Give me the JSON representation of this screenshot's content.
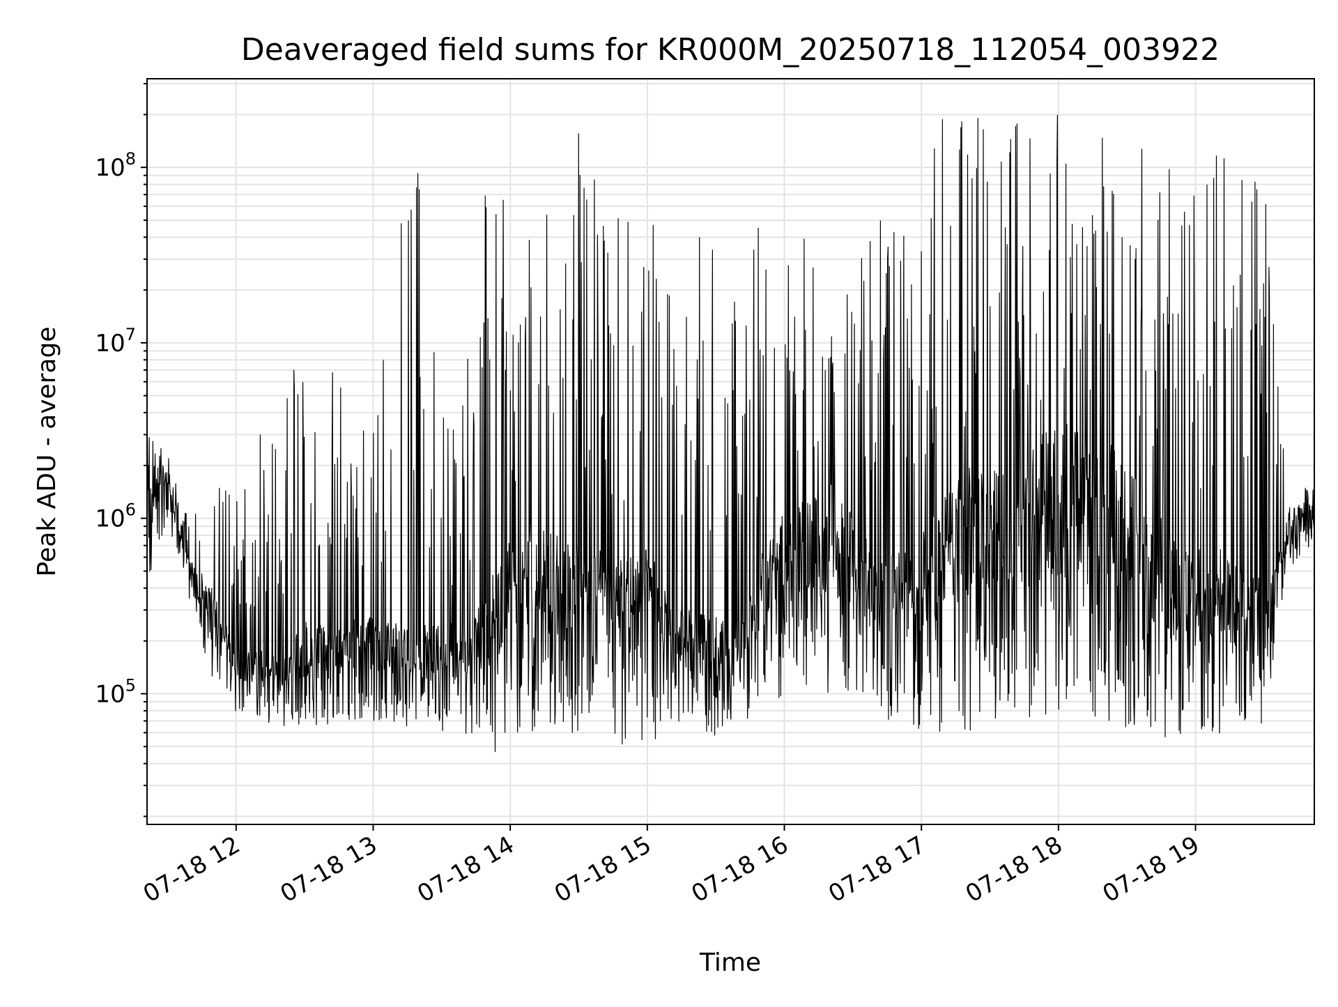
{
  "chart_data": {
    "type": "line",
    "title": "Deaveraged field sums for KR000M_20250718_112054_003922",
    "xlabel": "Time",
    "ylabel": "Peak ADU - average",
    "x_type": "datetime",
    "xlim": [
      "2025-07-18T11:21",
      "2025-07-18T19:52"
    ],
    "ylim": [
      18000,
      320000000
    ],
    "y_scale": "log",
    "grid": true,
    "x_ticks": [
      {
        "value": "2025-07-18T12:00",
        "label": "07-18 12"
      },
      {
        "value": "2025-07-18T13:00",
        "label": "07-18 13"
      },
      {
        "value": "2025-07-18T14:00",
        "label": "07-18 14"
      },
      {
        "value": "2025-07-18T15:00",
        "label": "07-18 15"
      },
      {
        "value": "2025-07-18T16:00",
        "label": "07-18 16"
      },
      {
        "value": "2025-07-18T17:00",
        "label": "07-18 17"
      },
      {
        "value": "2025-07-18T18:00",
        "label": "07-18 18"
      },
      {
        "value": "2025-07-18T19:00",
        "label": "07-18 19"
      }
    ],
    "y_ticks": [
      {
        "value": 100000,
        "base": "10",
        "exp": "5"
      },
      {
        "value": 1000000,
        "base": "10",
        "exp": "6"
      },
      {
        "value": 10000000,
        "base": "10",
        "exp": "7"
      },
      {
        "value": 100000000,
        "base": "10",
        "exp": "8"
      }
    ],
    "series": [
      {
        "color": "#000000",
        "envelope": {
          "x": [
            "11:21",
            "11:30",
            "11:40",
            "11:50",
            "12:00",
            "12:10",
            "12:20",
            "12:30",
            "12:40",
            "12:50",
            "13:00",
            "13:10",
            "13:20",
            "13:30",
            "13:40",
            "13:48",
            "13:55",
            "14:00",
            "14:10",
            "14:20",
            "14:30",
            "14:40",
            "14:50",
            "15:00",
            "15:10",
            "15:20",
            "15:30",
            "15:40",
            "15:50",
            "16:00",
            "16:10",
            "16:20",
            "16:30",
            "16:40",
            "16:50",
            "17:00",
            "17:10",
            "17:20",
            "17:30",
            "17:40",
            "17:50",
            "18:00",
            "18:10",
            "18:20",
            "18:30",
            "18:40",
            "18:50",
            "19:00",
            "19:10",
            "19:20",
            "19:30",
            "19:40",
            "19:52"
          ],
          "low": [
            400000,
            1000000,
            300000,
            120000,
            75000,
            70000,
            65000,
            60000,
            65000,
            70000,
            70000,
            65000,
            60000,
            60000,
            58000,
            50000,
            40000,
            60000,
            60000,
            55000,
            60000,
            55000,
            50000,
            50000,
            65000,
            60000,
            55000,
            60000,
            70000,
            100000,
            110000,
            90000,
            90000,
            90000,
            55000,
            55000,
            60000,
            55000,
            65000,
            75000,
            65000,
            70000,
            65000,
            55000,
            65000,
            60000,
            55000,
            50000,
            50000,
            55000,
            60000,
            500000,
            700000
          ],
          "mid": [
            1400000,
            1600000,
            500000,
            300000,
            150000,
            140000,
            130000,
            180000,
            170000,
            200000,
            190000,
            180000,
            170000,
            175000,
            180000,
            220000,
            300000,
            400000,
            500000,
            400000,
            380000,
            350000,
            300000,
            380000,
            220000,
            200000,
            180000,
            200000,
            400000,
            600000,
            700000,
            650000,
            600000,
            350000,
            350000,
            400000,
            650000,
            800000,
            900000,
            1000000,
            1100000,
            1300000,
            1200000,
            1100000,
            800000,
            600000,
            400000,
            350000,
            350000,
            300000,
            280000,
            700000,
            1400000
          ],
          "high": [
            3000000,
            2500000,
            900000,
            2000000,
            1500000,
            3000000,
            4000000,
            14000000,
            8000000,
            5000000,
            4000000,
            60000000,
            100000000,
            4000000,
            6000000,
            120000000,
            100000000,
            60000000,
            90000000,
            120000000,
            160000000,
            70000000,
            50000000,
            60000000,
            40000000,
            120000000,
            40000000,
            20000000,
            60000000,
            40000000,
            45000000,
            20000000,
            25000000,
            50000000,
            70000000,
            100000000,
            200000000,
            210000000,
            200000000,
            200000000,
            200000000,
            210000000,
            210000000,
            180000000,
            160000000,
            130000000,
            100000000,
            90000000,
            120000000,
            170000000,
            150000000,
            1200000,
            1700000
          ]
        }
      }
    ]
  }
}
